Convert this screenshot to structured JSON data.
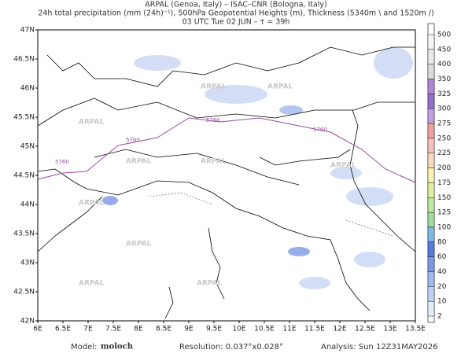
{
  "header": {
    "line1": "ARPAL (Genoa, Italy)  –  ISAC–CNR (Bologna, Italy)",
    "line2": "24h total precipitation (mm (24h)⁻¹), 500hPa Geopotential Heights (m), Thickness (5340m \\ and 1520m /)",
    "line3": "03 UTC Tue 02 JUN  –  τ = 39h"
  },
  "map": {
    "lat_labels": [
      "47N",
      "46.5N",
      "46N",
      "45.5N",
      "45N",
      "44.5N",
      "44N",
      "43.5N",
      "43N",
      "42.5N",
      "42N"
    ],
    "lon_labels": [
      "6E",
      "6.5E",
      "7E",
      "7.5E",
      "8E",
      "8.5E",
      "9E",
      "9.5E",
      "10E",
      "10.5E",
      "11E",
      "11.5E",
      "12E",
      "12.5E",
      "13E",
      "13.5E"
    ],
    "contour_label": "5760",
    "watermark": "ARPAL"
  },
  "colorbar": {
    "labels": [
      500,
      450,
      400,
      350,
      325,
      300,
      275,
      250,
      225,
      200,
      175,
      150,
      125,
      100,
      80,
      60,
      40,
      20,
      10,
      2
    ],
    "colors": [
      "#f4f4f4",
      "#e8e8e8",
      "#dcdcdc",
      "#b088d0",
      "#9070c8",
      "#c0a0e0",
      "#f0a0a0",
      "#f4c0c0",
      "#f8d8c0",
      "#f8f0b0",
      "#e0f0a0",
      "#c0e8a0",
      "#a0dca0",
      "#80b8e8",
      "#5a78d8",
      "#7d99e4",
      "#a0b8ee",
      "#bfd0f4",
      "#e4ecfa"
    ]
  },
  "footer": {
    "model_label": "Model:",
    "model": "moloch",
    "resolution": "Resolution: 0.037°x0.028°",
    "analysis": "Analysis: Sun 12Z31MAY2026"
  }
}
